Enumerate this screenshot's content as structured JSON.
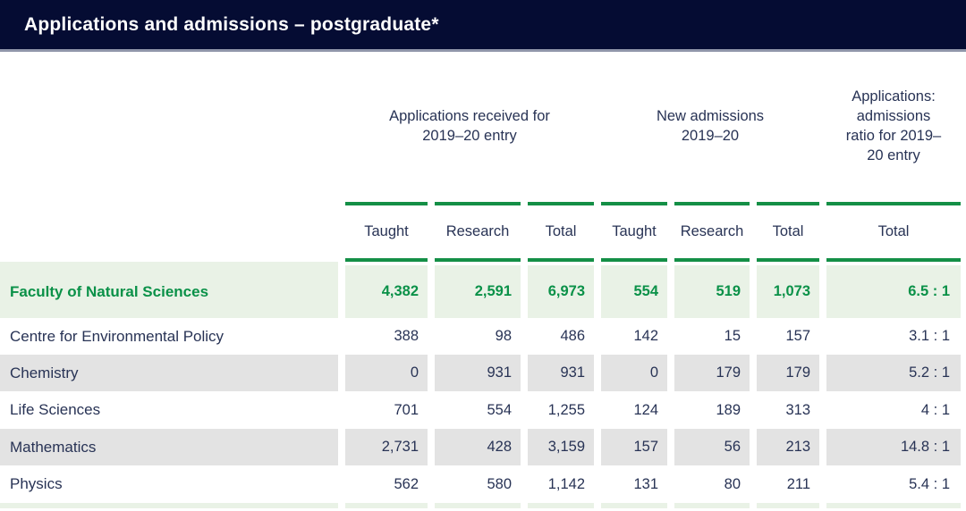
{
  "title_bar": {
    "title": "Applications and admissions – postgraduate*"
  },
  "colors": {
    "header_navy": "#050c33",
    "accent_green": "#148f46",
    "highlight_green_text": "#0a9148",
    "highlight_row_bg": "#e9f2e6",
    "alt_row_bg": "#e3e3e3",
    "body_text": "#283355"
  },
  "table": {
    "column_groups": [
      {
        "label": "Applications received for 2019–20 entry",
        "span": 3
      },
      {
        "label": "New admissions 2019–20",
        "span": 3
      },
      {
        "label": "Applications: admissions ratio for 2019–20 entry",
        "span": 1
      }
    ],
    "sub_headers": [
      "Taught",
      "Research",
      "Total",
      "Taught",
      "Research",
      "Total",
      "Total"
    ],
    "rows": [
      {
        "label": "Faculty of Natural Sciences",
        "style": "highlight",
        "values": [
          "4,382",
          "2,591",
          "6,973",
          "554",
          "519",
          "1,073",
          "6.5 : 1"
        ]
      },
      {
        "label": "Centre for Environmental Policy",
        "style": "white",
        "values": [
          "388",
          "98",
          "486",
          "142",
          "15",
          "157",
          "3.1 : 1"
        ]
      },
      {
        "label": "Chemistry",
        "style": "gray",
        "values": [
          "0",
          "931",
          "931",
          "0",
          "179",
          "179",
          "5.2 : 1"
        ]
      },
      {
        "label": "Life Sciences",
        "style": "white",
        "values": [
          "701",
          "554",
          "1,255",
          "124",
          "189",
          "313",
          "4 : 1"
        ]
      },
      {
        "label": "Mathematics",
        "style": "gray",
        "values": [
          "2,731",
          "428",
          "3,159",
          "157",
          "56",
          "213",
          "14.8 : 1"
        ]
      },
      {
        "label": "Physics",
        "style": "white",
        "values": [
          "562",
          "580",
          "1,142",
          "131",
          "80",
          "211",
          "5.4 : 1"
        ]
      }
    ]
  }
}
